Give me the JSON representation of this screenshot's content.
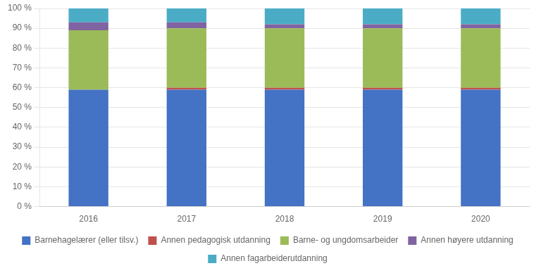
{
  "chart_data": {
    "type": "bar",
    "stacked": true,
    "categories": [
      "2016",
      "2017",
      "2018",
      "2019",
      "2020"
    ],
    "series": [
      {
        "name": "Barnehagelærer (eller tilsv.)",
        "color": "#4472C4",
        "values": [
          59,
          59,
          59,
          59,
          59
        ]
      },
      {
        "name": "Annen pedagogisk utdanning",
        "color": "#C0504D",
        "values": [
          0,
          1,
          1,
          1,
          1
        ]
      },
      {
        "name": "Barne- og ungdomsarbeider",
        "color": "#9BBB59",
        "values": [
          30,
          30,
          30,
          30,
          30
        ]
      },
      {
        "name": "Annen høyere utdanning",
        "color": "#8064A2",
        "values": [
          4,
          3,
          2,
          2,
          2
        ]
      },
      {
        "name": "Annen fagarbeiderutdanning",
        "color": "#4BACC6",
        "values": [
          7,
          7,
          8,
          8,
          8
        ]
      }
    ],
    "ylim": [
      0,
      100
    ],
    "yticks": [
      {
        "value": 0,
        "label": "0 %"
      },
      {
        "value": 10,
        "label": "10 %"
      },
      {
        "value": 20,
        "label": "20 %"
      },
      {
        "value": 30,
        "label": "30 %"
      },
      {
        "value": 40,
        "label": "40 %"
      },
      {
        "value": 50,
        "label": "50 %"
      },
      {
        "value": 60,
        "label": "60 %"
      },
      {
        "value": 70,
        "label": "70 %"
      },
      {
        "value": 80,
        "label": "80 %"
      },
      {
        "value": 90,
        "label": "90 %"
      },
      {
        "value": 100,
        "label": "100 %"
      }
    ],
    "grid": true,
    "legend": "bottom"
  }
}
